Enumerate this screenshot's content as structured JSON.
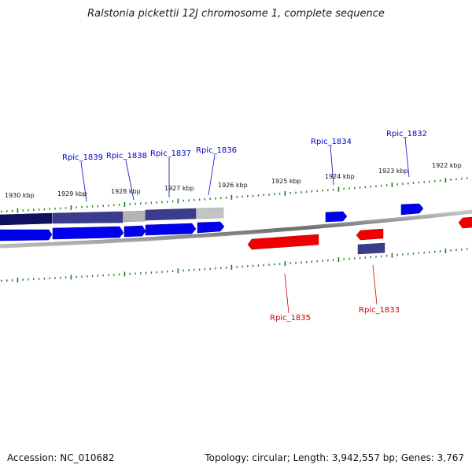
{
  "title": "Ralstonia pickettii 12J chromosome 1, complete sequence",
  "footer": {
    "accession": "Accession: NC_010682",
    "summary": "Topology: circular; Length: 3,942,557 bp; Genes: 3,767"
  },
  "colors": {
    "forward_gene": "#0000ee",
    "reverse_gene": "#ee0000",
    "selected_gene": "#3c3c8c",
    "dark_gene": "#101060",
    "grey_gene": "#b4b4b4",
    "tick": "#1a7a1a",
    "backbone": "#7a7a7a",
    "forward_label": "#0000cc",
    "reverse_label": "#cc0000"
  },
  "kbp_labels": [
    "1930 kbp",
    "1929 kbp",
    "1928 kbp",
    "1927 kbp",
    "1926 kbp",
    "1925 kbp",
    "1924 kbp",
    "1923 kbp",
    "1922 kbp"
  ],
  "gene_labels": {
    "forward": [
      "Rpic_1839",
      "Rpic_1838",
      "Rpic_1837",
      "Rpic_1836",
      "Rpic_1834",
      "Rpic_1832"
    ],
    "reverse": [
      "Rpic_1835",
      "Rpic_1833"
    ]
  }
}
